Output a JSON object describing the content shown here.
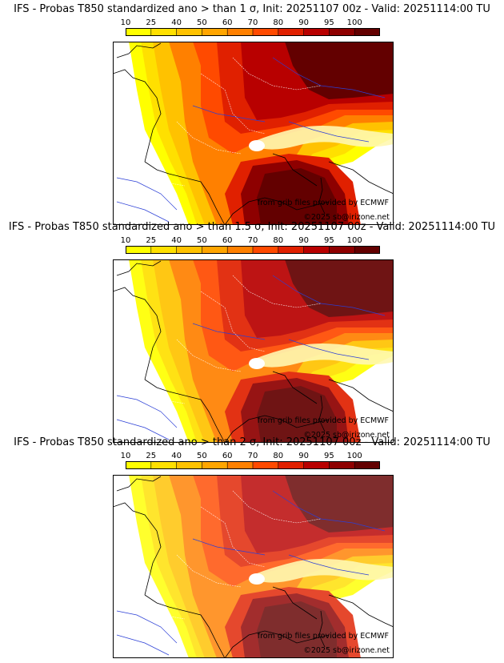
{
  "colorbar": {
    "ticks": [
      "10",
      "25",
      "40",
      "50",
      "60",
      "70",
      "80",
      "90",
      "95",
      "100"
    ],
    "thresholds": [
      10,
      25,
      40,
      50,
      60,
      70,
      80,
      90,
      95,
      100
    ],
    "colors": [
      "#ffff00",
      "#ffe000",
      "#ffc200",
      "#ffa500",
      "#ff8000",
      "#ff4a00",
      "#e02000",
      "#b80000",
      "#8e0000",
      "#630000"
    ]
  },
  "panels": [
    {
      "title": "IFS - Probas T850  standardized ano > than 1 σ, Init: 20251107 00z - Valid: 20251114:00 TU",
      "credit_line1": "from grib files provided by ECMWF",
      "credit_line2": "©2025 sb@irizone.net",
      "intensity": 1.0
    },
    {
      "title": "IFS - Probas T850  standardized ano > than 1.5 σ, Init: 20251107 00z - Valid: 20251114:00 TU",
      "credit_line1": "from grib files provided by ECMWF",
      "credit_line2": "©2025 sb@irizone.net",
      "intensity": 0.82
    },
    {
      "title": "IFS - Probas T850  standardized ano > than 2 σ, Init: 20251107 00z - Valid: 20251114:00 TU",
      "credit_line1": "from grib files provided by ECMWF",
      "credit_line2": "©2025 sb@irizone.net",
      "intensity": 0.6
    }
  ],
  "map_colors": {
    "land_outline": "#000000",
    "rivers": "#2b3fd6",
    "borders": "#ffffff",
    "background": "#ffffff"
  }
}
